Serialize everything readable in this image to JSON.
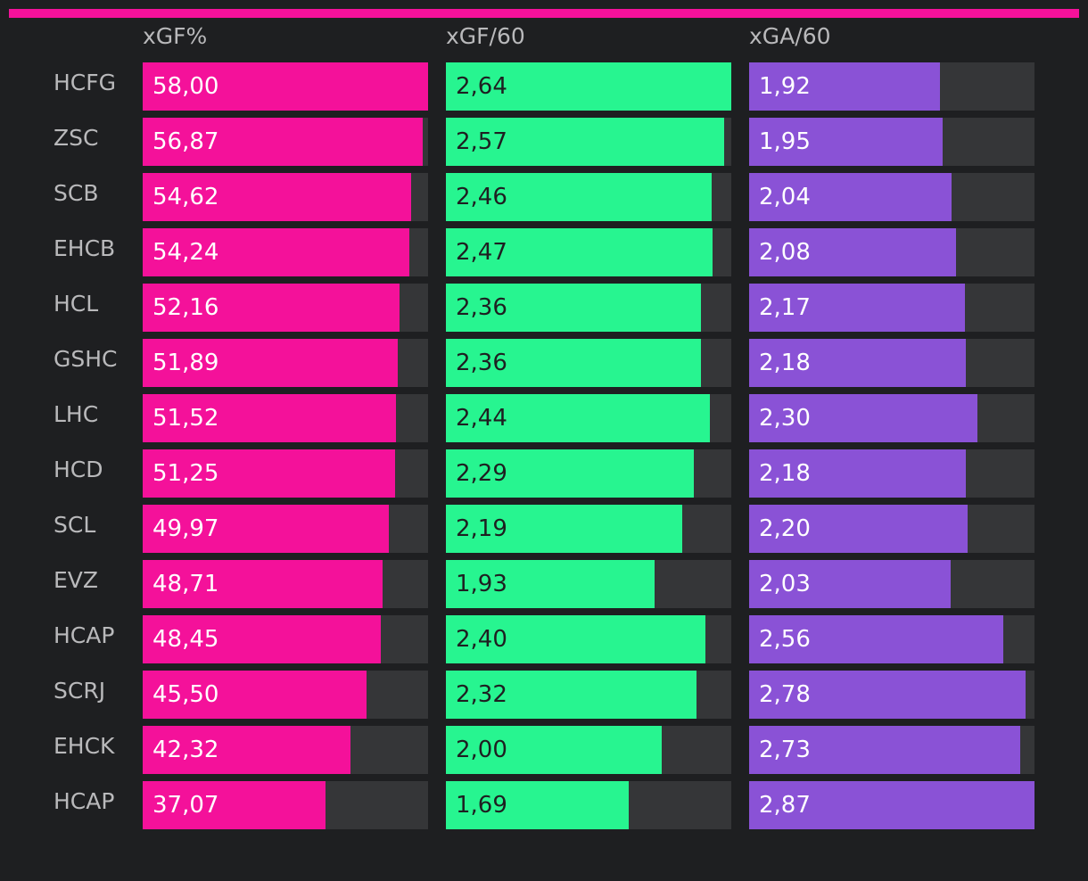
{
  "chart_data": {
    "type": "bar",
    "categories": [
      "HCFG",
      "ZSC",
      "SCB",
      "EHCB",
      "HCL",
      "GSHC",
      "LHC",
      "HCD",
      "SCL",
      "EVZ",
      "HCAP",
      "SCRJ",
      "EHCK",
      "HCAP"
    ],
    "series": [
      {
        "name": "xGF%",
        "color": "#f4119a",
        "text_color": "#ffffff",
        "xlim": [
          0,
          58.0
        ],
        "values": [
          58.0,
          56.87,
          54.62,
          54.24,
          52.16,
          51.89,
          51.52,
          51.25,
          49.97,
          48.71,
          48.45,
          45.5,
          42.32,
          37.07
        ],
        "labels": [
          "58,00",
          "56,87",
          "54,62",
          "54,24",
          "52,16",
          "51,89",
          "51,52",
          "51,25",
          "49,97",
          "48,71",
          "48,45",
          "45,50",
          "42,32",
          "37,07"
        ]
      },
      {
        "name": "xGF/60",
        "color": "#27f590",
        "text_color": "#1e1f21",
        "xlim": [
          0,
          2.64
        ],
        "values": [
          2.64,
          2.57,
          2.46,
          2.47,
          2.36,
          2.36,
          2.44,
          2.29,
          2.19,
          1.93,
          2.4,
          2.32,
          2.0,
          1.69
        ],
        "labels": [
          "2,64",
          "2,57",
          "2,46",
          "2,47",
          "2,36",
          "2,36",
          "2,44",
          "2,29",
          "2,19",
          "1,93",
          "2,40",
          "2,32",
          "2,00",
          "1,69"
        ]
      },
      {
        "name": "xGA/60",
        "color": "#8a52d6",
        "text_color": "#ffffff",
        "xlim": [
          0,
          2.87
        ],
        "values": [
          1.92,
          1.95,
          2.04,
          2.08,
          2.17,
          2.18,
          2.3,
          2.18,
          2.2,
          2.03,
          2.56,
          2.78,
          2.73,
          2.87
        ],
        "labels": [
          "1,92",
          "1,95",
          "2,04",
          "2,08",
          "2,17",
          "2,18",
          "2,30",
          "2,18",
          "2,20",
          "2,03",
          "2,56",
          "2,78",
          "2,73",
          "2,87"
        ]
      }
    ],
    "track_color": "#353638",
    "background": "#1e1f21",
    "accent_rule_color": "#f4119a",
    "grid": false
  }
}
